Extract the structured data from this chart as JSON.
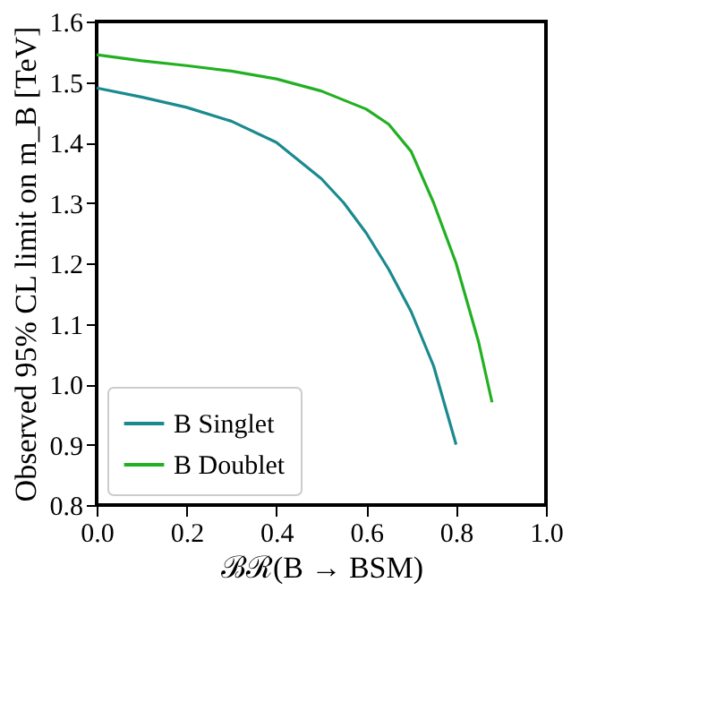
{
  "chart_data": {
    "type": "line",
    "xlabel": "ℬℛ(B → BSM)",
    "ylabel": "Observed 95% CL limit on m_B [TeV]",
    "xlim": [
      0,
      1
    ],
    "ylim": [
      0.8,
      1.6
    ],
    "xticks": [
      {
        "value": 0,
        "label": "0.0"
      },
      {
        "value": 0.2,
        "label": "0.2"
      },
      {
        "value": 0.4,
        "label": "0.4"
      },
      {
        "value": 0.6,
        "label": "0.6"
      },
      {
        "value": 0.8,
        "label": "0.8"
      },
      {
        "value": 1,
        "label": "1.0"
      }
    ],
    "yticks": [
      {
        "value": 0.8,
        "label": "0.8"
      },
      {
        "value": 0.9,
        "label": "0.9"
      },
      {
        "value": 1,
        "label": "1.0"
      },
      {
        "value": 1.1,
        "label": "1.1"
      },
      {
        "value": 1.2,
        "label": "1.2"
      },
      {
        "value": 1.3,
        "label": "1.3"
      },
      {
        "value": 1.4,
        "label": "1.4"
      },
      {
        "value": 1.5,
        "label": "1.5"
      },
      {
        "value": 1.6,
        "label": "1.6"
      }
    ],
    "grid": false,
    "legend": "bottom left",
    "line_style": "solid",
    "marker": "none",
    "series": [
      {
        "name": "B Singlet",
        "color": "#1a8a8e",
        "x": [
          0,
          0.1,
          0.2,
          0.3,
          0.4,
          0.5,
          0.55,
          0.6,
          0.65,
          0.7,
          0.75,
          0.8
        ],
        "values": [
          1.49,
          1.475,
          1.458,
          1.435,
          1.4,
          1.34,
          1.3,
          1.25,
          1.19,
          1.12,
          1.03,
          0.9
        ]
      },
      {
        "name": "B Doublet",
        "color": "#22b022",
        "x": [
          0,
          0.1,
          0.2,
          0.3,
          0.4,
          0.5,
          0.6,
          0.65,
          0.7,
          0.75,
          0.8,
          0.85,
          0.88
        ],
        "values": [
          1.545,
          1.535,
          1.527,
          1.518,
          1.505,
          1.485,
          1.455,
          1.43,
          1.385,
          1.3,
          1.2,
          1.07,
          0.97
        ]
      }
    ]
  }
}
